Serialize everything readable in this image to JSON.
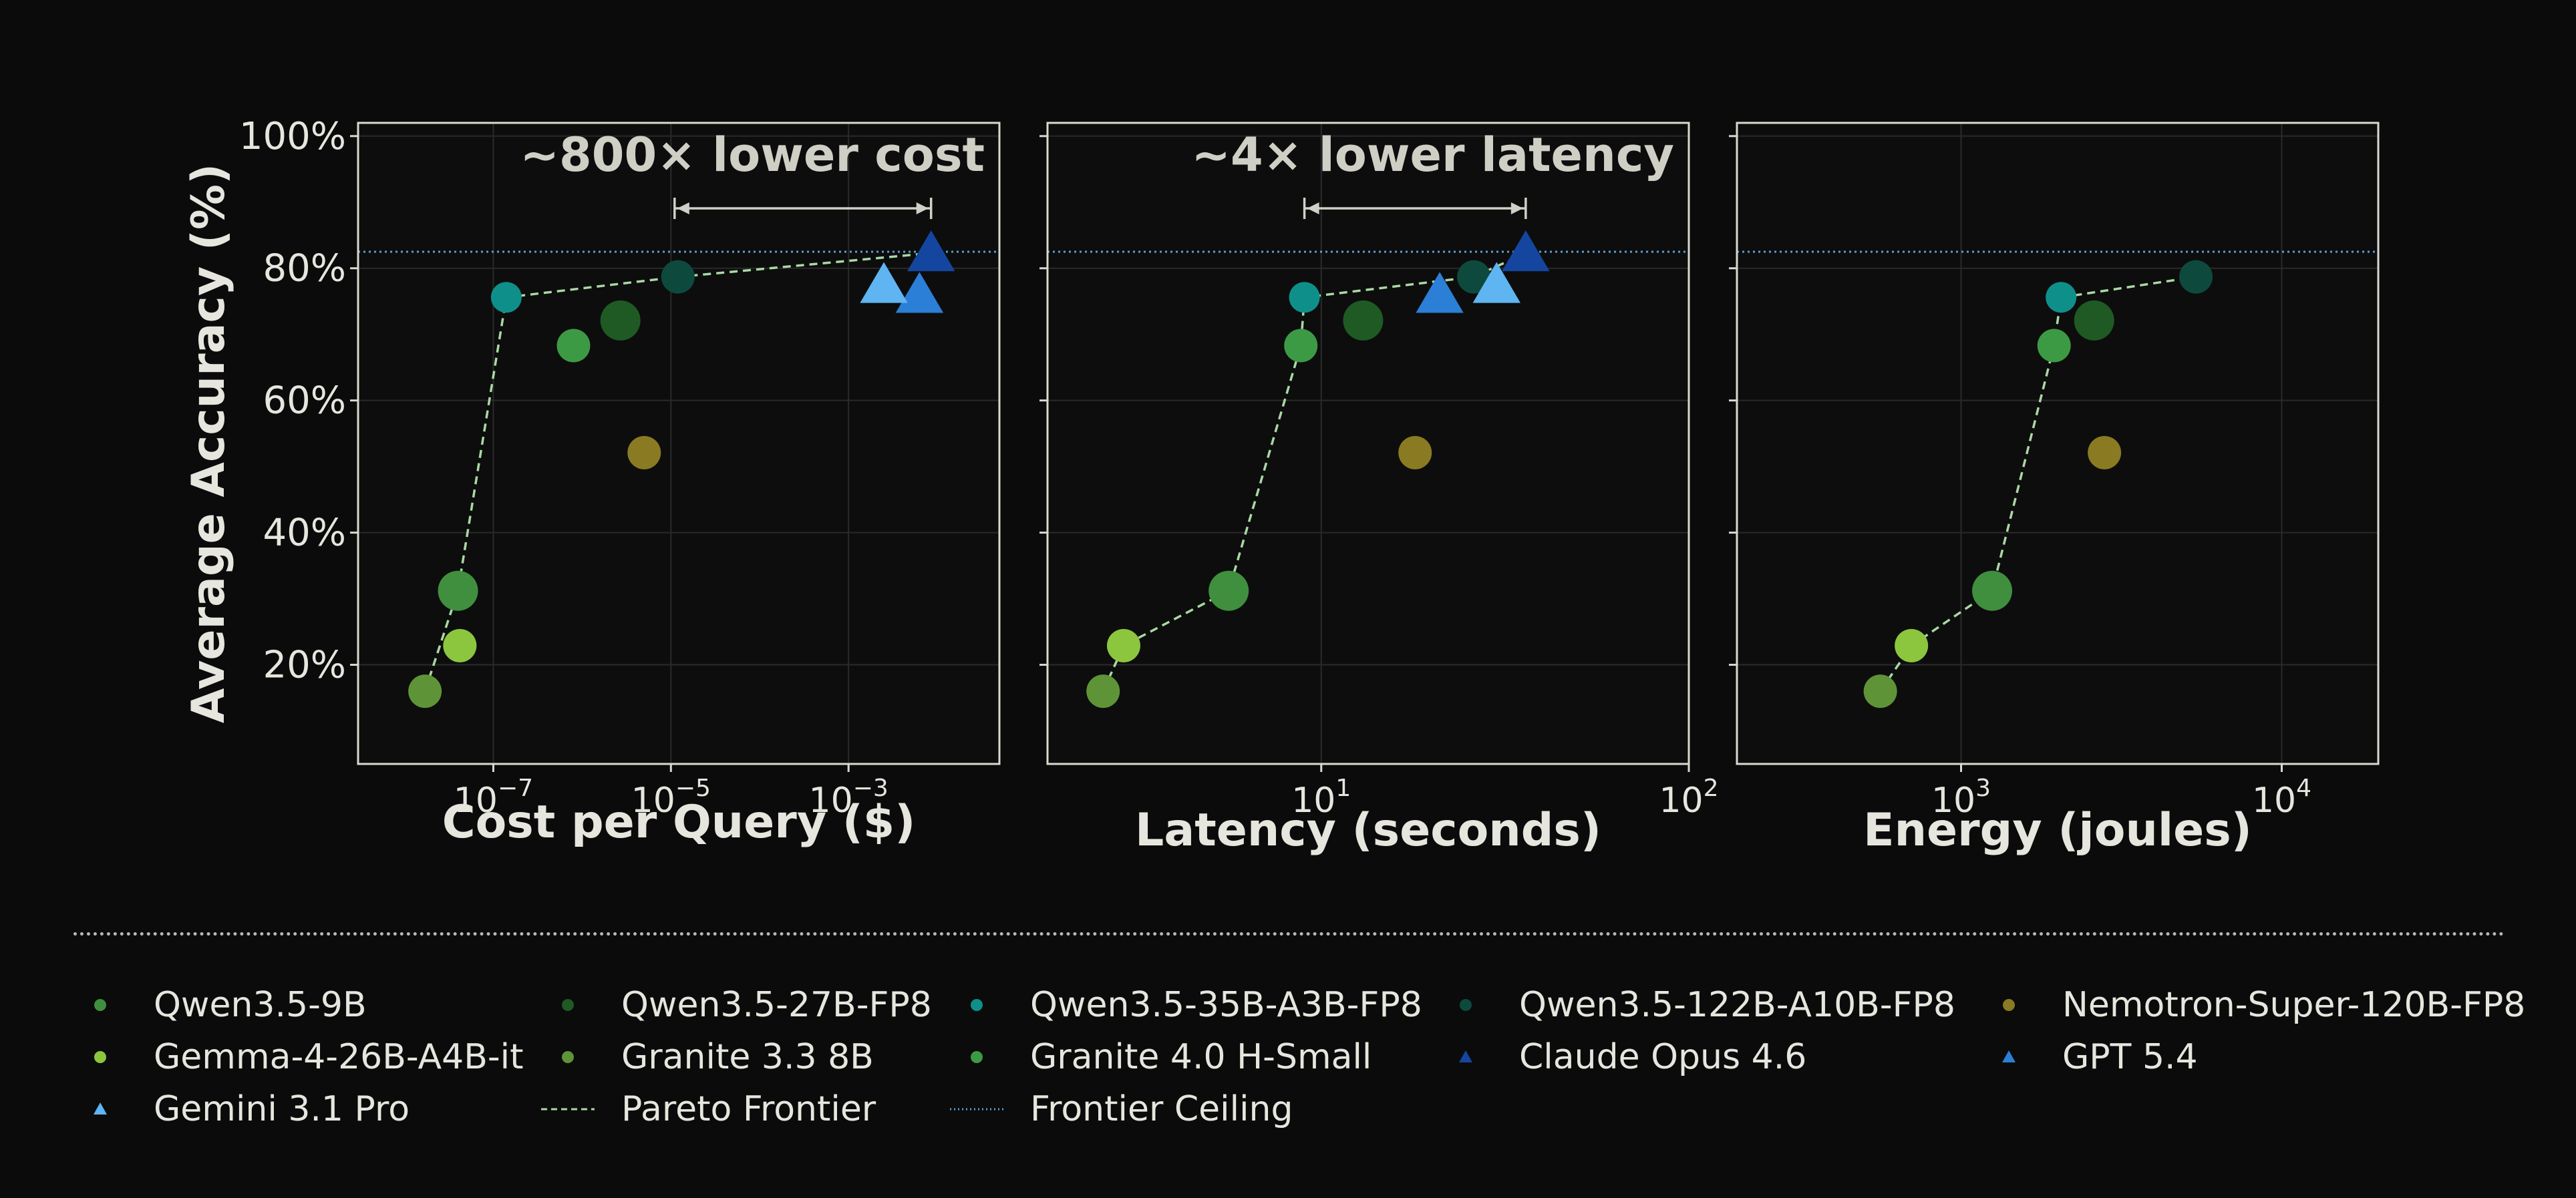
{
  "colors": {
    "background": "#0b0b0b",
    "panel": "#0d0d0d",
    "axis": "#d9d9d0",
    "grid": "#2a2a2a",
    "text": "#e6e6df",
    "pareto": "#a9d9a4",
    "ceiling": "#5a9fd4",
    "bracket": "#d0d0c8"
  },
  "chart_data": [
    {
      "type": "scatter",
      "xlabel": "Cost per Query ($)",
      "ylabel": "Average Accuracy (%)",
      "xscale": "log",
      "xlim": [
        3e-09,
        0.05
      ],
      "ylim": [
        5,
        102
      ],
      "x_ticks": [
        {
          "value": 1e-07,
          "base": "10",
          "exp": "−7"
        },
        {
          "value": 1e-05,
          "base": "10",
          "exp": "−5"
        },
        {
          "value": 0.001,
          "base": "10",
          "exp": "−3"
        }
      ],
      "y_ticks": [
        20,
        40,
        60,
        80,
        100
      ],
      "y_tick_labels": [
        "20%",
        "40%",
        "60%",
        "80%",
        "100%"
      ],
      "annotation": "~800× lower cost",
      "bracket_x": [
        1.1e-05,
        0.0085
      ],
      "frontier_ceiling": 82.5,
      "points": [
        {
          "model": "Qwen3.5-9B",
          "x": 4e-08,
          "y": 31.2
        },
        {
          "model": "Qwen3.5-27B-FP8",
          "x": 2.7e-06,
          "y": 72.1
        },
        {
          "model": "Qwen3.5-35B-A3B-FP8",
          "x": 1.4e-07,
          "y": 75.6
        },
        {
          "model": "Qwen3.5-122B-A10B-FP8",
          "x": 1.2e-05,
          "y": 78.7
        },
        {
          "model": "Nemotron-Super-120B-FP8",
          "x": 5e-06,
          "y": 52.1
        },
        {
          "model": "Gemma-4-26B-A4B-it",
          "x": 4.2e-08,
          "y": 22.9
        },
        {
          "model": "Granite 3.3 8B",
          "x": 1.7e-08,
          "y": 16.0
        },
        {
          "model": "Granite 4.0 H-Small",
          "x": 8e-07,
          "y": 68.3
        },
        {
          "model": "Claude Opus 4.6",
          "x": 0.0085,
          "y": 82.3
        },
        {
          "model": "GPT 5.4",
          "x": 0.0063,
          "y": 76.0
        },
        {
          "model": "Gemini 3.1 Pro",
          "x": 0.0025,
          "y": 77.5
        }
      ],
      "pareto": [
        [
          1.7e-08,
          16.0
        ],
        [
          4e-08,
          31.2
        ],
        [
          1.4e-07,
          75.6
        ],
        [
          1.2e-05,
          78.7
        ],
        [
          0.0085,
          82.3
        ]
      ]
    },
    {
      "type": "scatter",
      "xlabel": "Latency (seconds)",
      "xscale": "log",
      "xlim": [
        1.8,
        100
      ],
      "ylim": [
        5,
        102
      ],
      "x_ticks": [
        {
          "value": 10,
          "base": "10",
          "exp": "1"
        },
        {
          "value": 100,
          "base": "10",
          "exp": "2"
        }
      ],
      "y_ticks": [
        20,
        40,
        60,
        80,
        100
      ],
      "annotation": "~4× lower latency",
      "bracket_x": [
        9.0,
        36
      ],
      "frontier_ceiling": 82.5,
      "points": [
        {
          "model": "Qwen3.5-9B",
          "x": 5.6,
          "y": 31.2
        },
        {
          "model": "Qwen3.5-27B-FP8",
          "x": 13,
          "y": 72.1
        },
        {
          "model": "Qwen3.5-35B-A3B-FP8",
          "x": 9.0,
          "y": 75.6
        },
        {
          "model": "Qwen3.5-122B-A10B-FP8",
          "x": 26,
          "y": 78.7
        },
        {
          "model": "Nemotron-Super-120B-FP8",
          "x": 18,
          "y": 52.1
        },
        {
          "model": "Gemma-4-26B-A4B-it",
          "x": 2.9,
          "y": 22.9
        },
        {
          "model": "Granite 3.3 8B",
          "x": 2.55,
          "y": 16.0
        },
        {
          "model": "Granite 4.0 H-Small",
          "x": 8.8,
          "y": 68.3
        },
        {
          "model": "Claude Opus 4.6",
          "x": 36,
          "y": 82.3
        },
        {
          "model": "GPT 5.4",
          "x": 21,
          "y": 76.0
        },
        {
          "model": "Gemini 3.1 Pro",
          "x": 30,
          "y": 77.5
        }
      ],
      "pareto": [
        [
          2.55,
          16.0
        ],
        [
          2.9,
          22.9
        ],
        [
          5.6,
          31.2
        ],
        [
          8.8,
          68.3
        ],
        [
          9.0,
          75.6
        ],
        [
          26,
          78.7
        ],
        [
          36,
          82.3
        ]
      ]
    },
    {
      "type": "scatter",
      "xlabel": "Energy (joules)",
      "xscale": "log",
      "xlim": [
        200,
        20000
      ],
      "ylim": [
        5,
        102
      ],
      "x_ticks": [
        {
          "value": 1000,
          "base": "10",
          "exp": "3"
        },
        {
          "value": 10000,
          "base": "10",
          "exp": "4"
        }
      ],
      "y_ticks": [
        20,
        40,
        60,
        80,
        100
      ],
      "frontier_ceiling": 82.5,
      "points": [
        {
          "model": "Qwen3.5-9B",
          "x": 1250,
          "y": 31.2
        },
        {
          "model": "Qwen3.5-27B-FP8",
          "x": 2600,
          "y": 72.1
        },
        {
          "model": "Qwen3.5-35B-A3B-FP8",
          "x": 2050,
          "y": 75.6
        },
        {
          "model": "Qwen3.5-122B-A10B-FP8",
          "x": 5400,
          "y": 78.7
        },
        {
          "model": "Nemotron-Super-120B-FP8",
          "x": 2800,
          "y": 52.1
        },
        {
          "model": "Gemma-4-26B-A4B-it",
          "x": 700,
          "y": 22.9
        },
        {
          "model": "Granite 3.3 8B",
          "x": 560,
          "y": 16.0
        },
        {
          "model": "Granite 4.0 H-Small",
          "x": 1950,
          "y": 68.3
        }
      ],
      "pareto": [
        [
          560,
          16.0
        ],
        [
          700,
          22.9
        ],
        [
          1250,
          31.2
        ],
        [
          1950,
          68.3
        ],
        [
          2050,
          75.6
        ],
        [
          5400,
          78.7
        ]
      ]
    }
  ],
  "models": {
    "Qwen3.5-9B": {
      "color": "#3f8f3f",
      "shape": "circle",
      "size": 30
    },
    "Qwen3.5-27B-FP8": {
      "color": "#1f5a24",
      "shape": "circle",
      "size": 30
    },
    "Qwen3.5-35B-A3B-FP8": {
      "color": "#0f8f8a",
      "shape": "circle",
      "size": 23
    },
    "Qwen3.5-122B-A10B-FP8": {
      "color": "#0d4a3d",
      "shape": "circle",
      "size": 25
    },
    "Nemotron-Super-120B-FP8": {
      "color": "#8a7a22",
      "shape": "circle",
      "size": 25
    },
    "Gemma-4-26B-A4B-it": {
      "color": "#8cc63e",
      "shape": "circle",
      "size": 25
    },
    "Granite 3.3 8B": {
      "color": "#5e9437",
      "shape": "circle",
      "size": 25
    },
    "Granite 4.0 H-Small": {
      "color": "#3d9a44",
      "shape": "circle",
      "size": 25
    },
    "Claude Opus 4.6": {
      "color": "#1446a0",
      "shape": "triangle",
      "size": 34
    },
    "GPT 5.4": {
      "color": "#2b7fd6",
      "shape": "triangle",
      "size": 34
    },
    "Gemini 3.1 Pro": {
      "color": "#5fb4f2",
      "shape": "triangle",
      "size": 34
    }
  },
  "legend": [
    {
      "label": "Qwen3.5-9B",
      "kind": "circle",
      "color": "#3f8f3f"
    },
    {
      "label": "Qwen3.5-27B-FP8",
      "kind": "circle",
      "color": "#1f5a24"
    },
    {
      "label": "Qwen3.5-35B-A3B-FP8",
      "kind": "circle",
      "color": "#0f8f8a"
    },
    {
      "label": "Qwen3.5-122B-A10B-FP8",
      "kind": "circle",
      "color": "#0d4a3d"
    },
    {
      "label": "Nemotron-Super-120B-FP8",
      "kind": "circle",
      "color": "#8a7a22"
    },
    {
      "label": "Gemma-4-26B-A4B-it",
      "kind": "circle",
      "color": "#8cc63e"
    },
    {
      "label": "Granite 3.3 8B",
      "kind": "circle",
      "color": "#5e9437"
    },
    {
      "label": "Granite 4.0 H-Small",
      "kind": "circle",
      "color": "#3d9a44"
    },
    {
      "label": "Claude Opus 4.6",
      "kind": "triangle",
      "color": "#1446a0"
    },
    {
      "label": "GPT 5.4",
      "kind": "triangle",
      "color": "#2b7fd6"
    },
    {
      "label": "Gemini 3.1 Pro",
      "kind": "triangle",
      "color": "#5fb4f2"
    },
    {
      "label": "Pareto Frontier",
      "kind": "dashed",
      "color": "#a9d9a4"
    },
    {
      "label": "Frontier Ceiling",
      "kind": "dotted",
      "color": "#5a9fd4"
    }
  ]
}
